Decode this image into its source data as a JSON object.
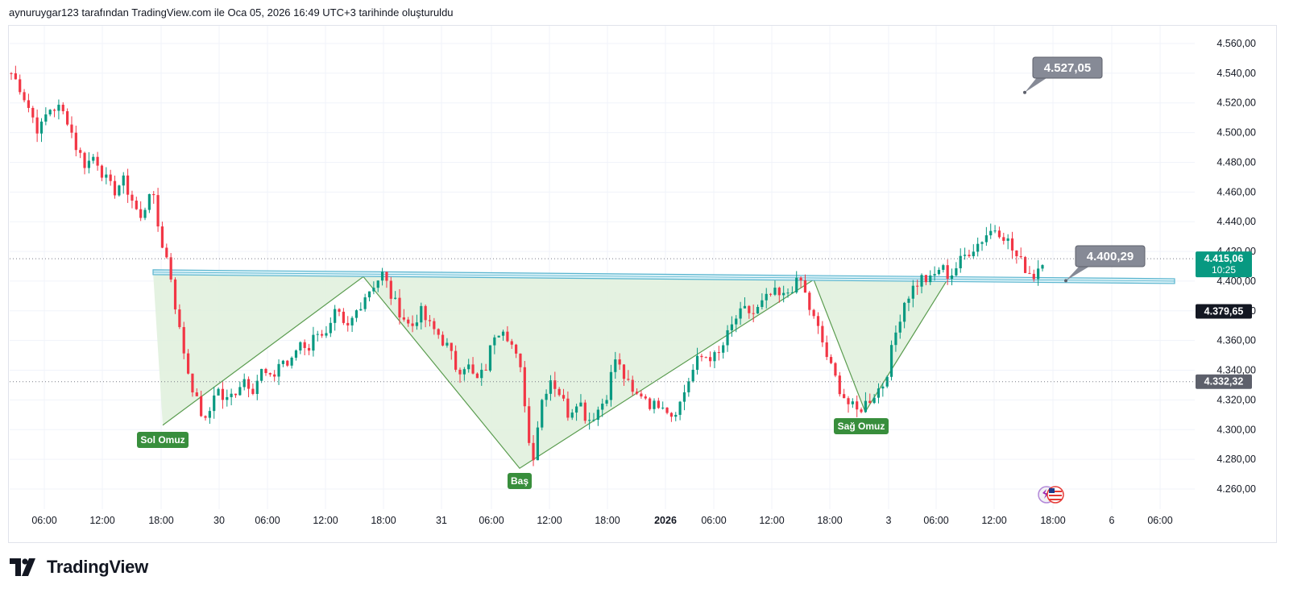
{
  "header": {
    "caption": "aynuruygar123 tarafından TradingView.com ile Oca 05, 2026 16:49 UTC+3 tarihinde oluşturuldu"
  },
  "brand": {
    "name": "TradingView",
    "logo_icon": "tradingview-logo-icon"
  },
  "colors": {
    "up": "#089981",
    "down": "#f23645",
    "pattern_fill": "#dff0dc",
    "pattern_line": "#5a9c4f",
    "label_green": "#388e3c",
    "neckline": "#5ab5cf",
    "callout": "#868a96",
    "current_price": "#089981",
    "dark_tag": "#131722",
    "grey_tag": "#5d606b"
  },
  "chart_data": {
    "type": "candlestick",
    "x_ticks": [
      {
        "label": "06:00",
        "bold": false
      },
      {
        "label": "12:00",
        "bold": false
      },
      {
        "label": "18:00",
        "bold": false
      },
      {
        "label": "30",
        "bold": false
      },
      {
        "label": "06:00",
        "bold": false
      },
      {
        "label": "12:00",
        "bold": false
      },
      {
        "label": "18:00",
        "bold": false
      },
      {
        "label": "31",
        "bold": false
      },
      {
        "label": "06:00",
        "bold": false
      },
      {
        "label": "12:00",
        "bold": false
      },
      {
        "label": "18:00",
        "bold": false
      },
      {
        "label": "2026",
        "bold": true
      },
      {
        "label": "06:00",
        "bold": false
      },
      {
        "label": "12:00",
        "bold": false
      },
      {
        "label": "18:00",
        "bold": false
      },
      {
        "label": "3",
        "bold": false
      },
      {
        "label": "06:00",
        "bold": false
      },
      {
        "label": "12:00",
        "bold": false
      },
      {
        "label": "18:00",
        "bold": false
      },
      {
        "label": "6",
        "bold": false
      },
      {
        "label": "06:00",
        "bold": false
      }
    ],
    "y_ticks": [
      {
        "value": 4260,
        "label": "4.260,00"
      },
      {
        "value": 4280,
        "label": "4.280,00"
      },
      {
        "value": 4300,
        "label": "4.300,00"
      },
      {
        "value": 4320,
        "label": "4.320,00"
      },
      {
        "value": 4340,
        "label": "4.340,00"
      },
      {
        "value": 4360,
        "label": "4.360,00"
      },
      {
        "value": 4380,
        "label": "4.380,00"
      },
      {
        "value": 4400,
        "label": "4.400,00"
      },
      {
        "value": 4420,
        "label": "4.420,00"
      },
      {
        "value": 4440,
        "label": "4.440,00"
      },
      {
        "value": 4460,
        "label": "4.460,00"
      },
      {
        "value": 4480,
        "label": "4.480,00"
      },
      {
        "value": 4500,
        "label": "4.500,00"
      },
      {
        "value": 4520,
        "label": "4.520,00"
      },
      {
        "value": 4540,
        "label": "4.540,00"
      },
      {
        "value": 4560,
        "label": "4.560,00"
      }
    ],
    "ylim": [
      4245,
      4568
    ],
    "price_path": [
      [
        4540,
        "o"
      ],
      [
        4530,
        "h"
      ],
      [
        4515,
        "h"
      ],
      [
        4500,
        "h"
      ],
      [
        4516,
        "h"
      ],
      [
        4517,
        "h"
      ],
      [
        4510,
        "h"
      ],
      [
        4490,
        "h"
      ],
      [
        4478,
        "h"
      ],
      [
        4485,
        "h"
      ],
      [
        4470,
        "h"
      ],
      [
        4460,
        "h"
      ],
      [
        4468,
        "h"
      ],
      [
        4455,
        "h"
      ],
      [
        4440,
        "h"
      ],
      [
        4465,
        "h"
      ],
      [
        4430,
        "h"
      ],
      [
        4410,
        "h"
      ],
      [
        4370,
        "h"
      ],
      [
        4340,
        "h"
      ],
      [
        4318,
        "h"
      ],
      [
        4303,
        "h"
      ],
      [
        4330,
        "h"
      ],
      [
        4318,
        "h"
      ],
      [
        4325,
        "h"
      ],
      [
        4335,
        "h"
      ],
      [
        4328,
        "h"
      ],
      [
        4340,
        "h"
      ],
      [
        4332,
        "h"
      ],
      [
        4348,
        "h"
      ],
      [
        4342,
        "h"
      ],
      [
        4360,
        "h"
      ],
      [
        4355,
        "h"
      ],
      [
        4368,
        "h"
      ],
      [
        4362,
        "h"
      ],
      [
        4380,
        "h"
      ],
      [
        4365,
        "h"
      ],
      [
        4378,
        "h"
      ],
      [
        4390,
        "h"
      ],
      [
        4398,
        "h"
      ],
      [
        4405,
        "h"
      ],
      [
        4388,
        "h"
      ],
      [
        4378,
        "h"
      ],
      [
        4368,
        "h"
      ],
      [
        4380,
        "h"
      ],
      [
        4370,
        "h"
      ],
      [
        4364,
        "h"
      ],
      [
        4355,
        "h"
      ],
      [
        4340,
        "h"
      ],
      [
        4345,
        "h"
      ],
      [
        4332,
        "h"
      ],
      [
        4340,
        "h"
      ],
      [
        4365,
        "h"
      ],
      [
        4370,
        "h"
      ],
      [
        4355,
        "h"
      ],
      [
        4335,
        "h"
      ],
      [
        4275,
        "h"
      ],
      [
        4318,
        "h"
      ],
      [
        4335,
        "h"
      ],
      [
        4325,
        "h"
      ],
      [
        4310,
        "h"
      ],
      [
        4322,
        "h"
      ],
      [
        4306,
        "h"
      ],
      [
        4312,
        "h"
      ],
      [
        4322,
        "h"
      ],
      [
        4348,
        "h"
      ],
      [
        4335,
        "h"
      ],
      [
        4322,
        "h"
      ],
      [
        4325,
        "h"
      ],
      [
        4315,
        "h"
      ],
      [
        4320,
        "h"
      ],
      [
        4310,
        "h"
      ],
      [
        4318,
        "h"
      ],
      [
        4335,
        "h"
      ],
      [
        4348,
        "h"
      ],
      [
        4350,
        "h"
      ],
      [
        4348,
        "h"
      ],
      [
        4362,
        "h"
      ],
      [
        4375,
        "h"
      ],
      [
        4380,
        "h"
      ],
      [
        4378,
        "h"
      ],
      [
        4386,
        "h"
      ],
      [
        4392,
        "h"
      ],
      [
        4388,
        "h"
      ],
      [
        4396,
        "h"
      ],
      [
        4400,
        "h"
      ],
      [
        4380,
        "h"
      ],
      [
        4365,
        "h"
      ],
      [
        4345,
        "h"
      ],
      [
        4330,
        "h"
      ],
      [
        4318,
        "h"
      ],
      [
        4312,
        "h"
      ],
      [
        4318,
        "h"
      ],
      [
        4325,
        "h"
      ],
      [
        4332,
        "h"
      ],
      [
        4360,
        "h"
      ],
      [
        4385,
        "h"
      ],
      [
        4395,
        "h"
      ],
      [
        4402,
        "h"
      ],
      [
        4400,
        "h"
      ],
      [
        4410,
        "h"
      ],
      [
        4403,
        "h"
      ],
      [
        4412,
        "h"
      ],
      [
        4420,
        "h"
      ],
      [
        4425,
        "h"
      ],
      [
        4432,
        "h"
      ],
      [
        4436,
        "h"
      ],
      [
        4430,
        "h"
      ],
      [
        4418,
        "h"
      ],
      [
        4410,
        "h"
      ],
      [
        4403,
        "h"
      ],
      [
        4415,
        "h"
      ]
    ],
    "neckline": {
      "start": 4406,
      "end": 4400
    },
    "pattern_points": [
      {
        "name": "Sol Omuz",
        "price": 4303
      },
      {
        "name": "Baş",
        "price": 4274
      },
      {
        "name": "Sağ Omuz",
        "price": 4312
      }
    ],
    "pattern_peaks": [
      4403,
      4401,
      4401
    ],
    "labels": {
      "left_shoulder": "Sol Omuz",
      "head": "Baş",
      "right_shoulder": "Sağ Omuz"
    },
    "callouts": [
      {
        "label": "4.527,05",
        "value": 4527.05
      },
      {
        "label": "4.400,29",
        "value": 4400.29
      }
    ],
    "price_tags": [
      {
        "label": "4.415,06",
        "sublabel": "10:25",
        "value": 4415.06,
        "style": "current"
      },
      {
        "label": "4.379,65",
        "value": 4379.65,
        "style": "dark"
      },
      {
        "label": "4.332,32",
        "value": 4332.32,
        "style": "grey"
      }
    ],
    "dotted_levels": [
      4415.06,
      4332.32
    ]
  }
}
